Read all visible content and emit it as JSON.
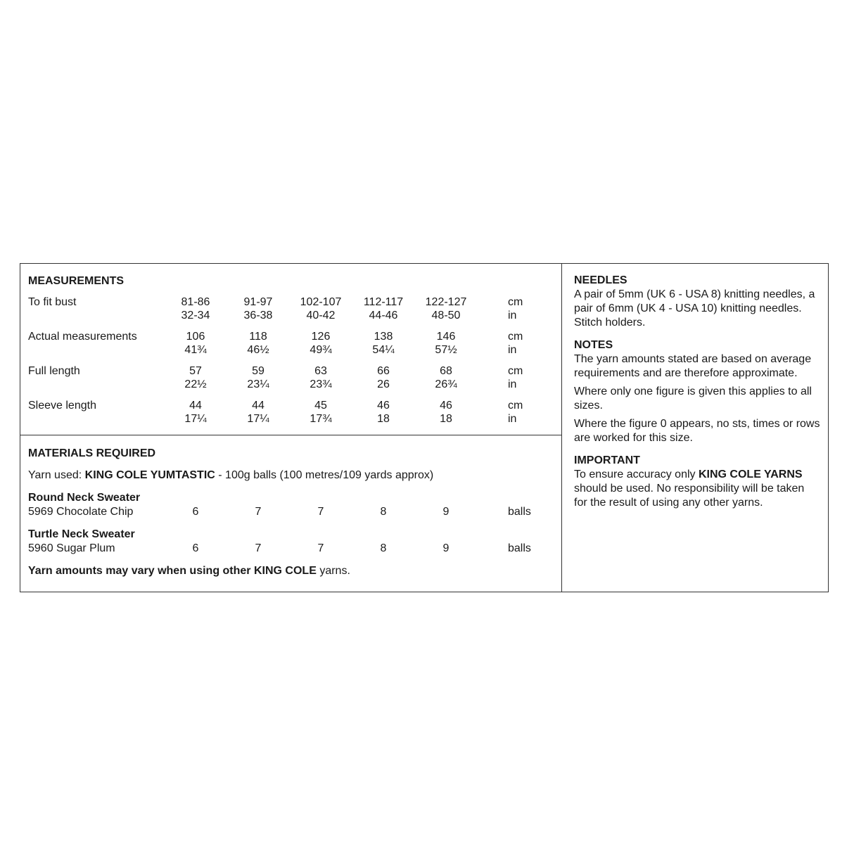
{
  "measurements": {
    "title": "MEASUREMENTS",
    "rows": [
      {
        "label": "To fit bust",
        "cm": [
          "81-86",
          "91-97",
          "102-107",
          "112-117",
          "122-127"
        ],
        "in": [
          "32-34",
          "36-38",
          "40-42",
          "44-46",
          "48-50"
        ]
      },
      {
        "label": "Actual measurements",
        "cm": [
          "106",
          "118",
          "126",
          "138",
          "146"
        ],
        "in": [
          "41¾",
          "46½",
          "49¾",
          "54¼",
          "57½"
        ]
      },
      {
        "label": "Full length",
        "cm": [
          "57",
          "59",
          "63",
          "66",
          "68"
        ],
        "in": [
          "22½",
          "23¼",
          "23¾",
          "26",
          "26¾"
        ]
      },
      {
        "label": "Sleeve length",
        "cm": [
          "44",
          "44",
          "45",
          "46",
          "46"
        ],
        "in": [
          "17¼",
          "17¼",
          "17¾",
          "18",
          "18"
        ]
      }
    ],
    "unit_cm": "cm",
    "unit_in": "in"
  },
  "materials": {
    "title": "MATERIALS REQUIRED",
    "yarn_prefix": "Yarn used: ",
    "yarn_name": "KING COLE YUMTASTIC",
    "yarn_suffix": " - 100g balls (100 metres/109 yards approx)",
    "items": [
      {
        "name": "Round Neck Sweater",
        "shade": "5969 Chocolate Chip",
        "balls": [
          "6",
          "7",
          "7",
          "8",
          "9"
        ],
        "unit": "balls"
      },
      {
        "name": "Turtle Neck Sweater",
        "shade": "5960 Sugar Plum",
        "balls": [
          "6",
          "7",
          "7",
          "8",
          "9"
        ],
        "unit": "balls"
      }
    ],
    "note_a": "Yarn amounts may vary when using other ",
    "note_b": "KING COLE",
    "note_c": " yarns."
  },
  "needles": {
    "title": "NEEDLES",
    "text": "A pair of 5mm (UK 6 - USA 8) knitting needles, a pair of 6mm (UK 4 - USA 10) knitting needles. Stitch holders."
  },
  "notes": {
    "title": "NOTES",
    "paragraphs": [
      "The yarn amounts stated are based on average requirements and are therefore approximate.",
      "Where only one figure is given this applies to all sizes.",
      "Where the figure 0 appears, no sts, times or rows are worked for this size."
    ]
  },
  "important": {
    "title": "IMPORTANT",
    "text_a": "To ensure accuracy only ",
    "text_b": "KING COLE YARNS",
    "text_c": " should be used. No responsibility will be taken for the result of using any other yarns."
  }
}
